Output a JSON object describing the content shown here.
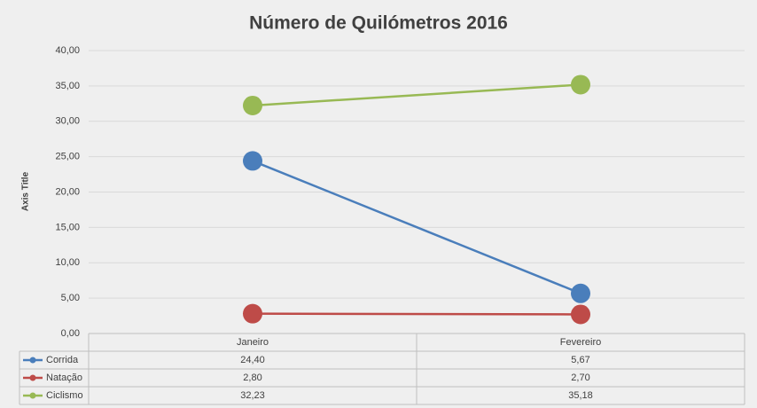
{
  "chart_data": {
    "type": "line",
    "title": "Número de Quilómetros 2016",
    "y_axis_label": "Axis Title",
    "categories": [
      "Janeiro",
      "Fevereiro"
    ],
    "series": [
      {
        "name": "Corrida",
        "color": "#4a7ebb",
        "values": [
          24.4,
          5.67
        ],
        "value_labels": [
          "24,40",
          "5,67"
        ]
      },
      {
        "name": "Natação",
        "color": "#be4b48",
        "values": [
          2.8,
          2.7
        ],
        "value_labels": [
          "2,80",
          "2,70"
        ]
      },
      {
        "name": "Ciclismo",
        "color": "#98b954",
        "values": [
          32.23,
          35.18
        ],
        "value_labels": [
          "32,23",
          "35,18"
        ]
      }
    ],
    "ylim": [
      0,
      40
    ],
    "yticks": [
      {
        "value": 0,
        "label": "0,00"
      },
      {
        "value": 5,
        "label": "5,00"
      },
      {
        "value": 10,
        "label": "10,00"
      },
      {
        "value": 15,
        "label": "15,00"
      },
      {
        "value": 20,
        "label": "20,00"
      },
      {
        "value": 25,
        "label": "25,00"
      },
      {
        "value": 30,
        "label": "30,00"
      },
      {
        "value": 35,
        "label": "35,00"
      },
      {
        "value": 40,
        "label": "40,00"
      }
    ],
    "grid": true,
    "data_table": true
  }
}
